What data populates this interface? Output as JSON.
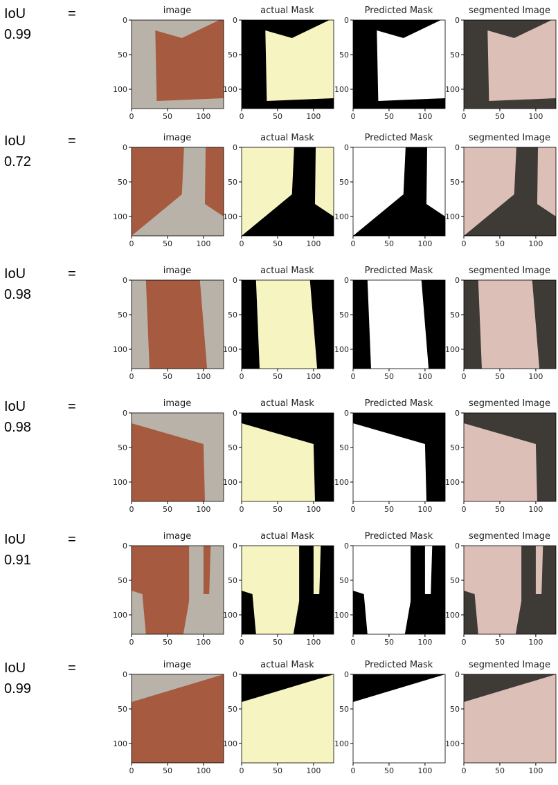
{
  "rows": [
    {
      "label": "IoU",
      "equals": "=",
      "score": "0.99"
    },
    {
      "label": "IoU",
      "equals": "=",
      "score": "0.72"
    },
    {
      "label": "IoU",
      "equals": "=",
      "score": "0.98"
    },
    {
      "label": "IoU",
      "equals": "=",
      "score": "0.98"
    },
    {
      "label": "IoU",
      "equals": "=",
      "score": "0.91"
    },
    {
      "label": "IoU",
      "equals": "=",
      "score": "0.99"
    }
  ],
  "panel_titles": [
    "image",
    "actual Mask",
    "Predicted Mask",
    "segmented Image"
  ],
  "axis_ticks": [
    0,
    50,
    100
  ]
}
